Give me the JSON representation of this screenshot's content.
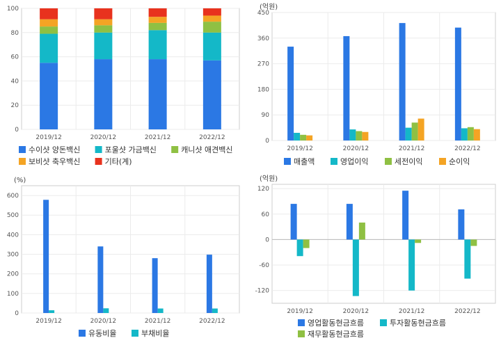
{
  "chart_data": [
    {
      "type": "bar",
      "stacked": true,
      "title": "",
      "unit": "",
      "categories": [
        "2019/12",
        "2020/12",
        "2021/12",
        "2022/12"
      ],
      "ylim": [
        0,
        100
      ],
      "yticks": [
        0,
        20,
        40,
        60,
        80,
        100
      ],
      "grid": true,
      "legend": "bottom",
      "series": [
        {
          "name": "수이샷 양돈백신",
          "color": "#2b78e4",
          "values": [
            55,
            58,
            58,
            57
          ]
        },
        {
          "name": "포울샷 가금백신",
          "color": "#14b8c8",
          "values": [
            24,
            22,
            24,
            23
          ]
        },
        {
          "name": "캐니샷 애견백신",
          "color": "#8fc043",
          "values": [
            6,
            6,
            6,
            9
          ]
        },
        {
          "name": "보비샷 축우백신",
          "color": "#f4a424",
          "values": [
            6,
            5,
            5,
            5
          ]
        },
        {
          "name": "기타(계)",
          "color": "#e8321e",
          "values": [
            9,
            9,
            7,
            6
          ]
        }
      ]
    },
    {
      "type": "bar",
      "title": "",
      "unit": "(억원)",
      "categories": [
        "2019/12",
        "2020/12",
        "2021/12",
        "2022/12"
      ],
      "ylim": [
        0,
        450
      ],
      "yticks": [
        0,
        90,
        180,
        270,
        360,
        450
      ],
      "grid": true,
      "legend": "bottom",
      "series": [
        {
          "name": "매출액",
          "color": "#2b78e4",
          "values": [
            330,
            367,
            413,
            397
          ]
        },
        {
          "name": "영업이익",
          "color": "#14b8c8",
          "values": [
            27,
            39,
            45,
            43
          ]
        },
        {
          "name": "세전이익",
          "color": "#8fc043",
          "values": [
            20,
            33,
            63,
            47
          ]
        },
        {
          "name": "순이익",
          "color": "#f4a424",
          "values": [
            18,
            30,
            77,
            40
          ]
        }
      ]
    },
    {
      "type": "bar",
      "title": "",
      "unit": "(%)",
      "categories": [
        "2019/12",
        "2020/12",
        "2021/12",
        "2022/12"
      ],
      "ylim": [
        0,
        650
      ],
      "yticks": [
        0,
        100,
        200,
        300,
        400,
        500,
        600
      ],
      "grid": true,
      "legend": "bottom",
      "series": [
        {
          "name": "유동비율",
          "color": "#2b78e4",
          "values": [
            578,
            340,
            280,
            298
          ]
        },
        {
          "name": "부채비율",
          "color": "#14b8c8",
          "values": [
            14,
            24,
            23,
            23
          ]
        }
      ]
    },
    {
      "type": "bar",
      "title": "",
      "unit": "(억원)",
      "categories": [
        "2019/12",
        "2020/12",
        "2021/12",
        "2022/12"
      ],
      "ylim": [
        -150,
        130
      ],
      "yticks": [
        -120,
        -60,
        0,
        60,
        120
      ],
      "grid": true,
      "legend": "bottom",
      "series": [
        {
          "name": "영업활동현금흐름",
          "color": "#2b78e4",
          "values": [
            84,
            84,
            115,
            71
          ]
        },
        {
          "name": "투자활동현금흐름",
          "color": "#14b8c8",
          "values": [
            -39,
            -133,
            -120,
            -92
          ]
        },
        {
          "name": "재무활동현금흐름",
          "color": "#8fc043",
          "values": [
            -20,
            40,
            -8,
            -15
          ]
        }
      ]
    }
  ]
}
